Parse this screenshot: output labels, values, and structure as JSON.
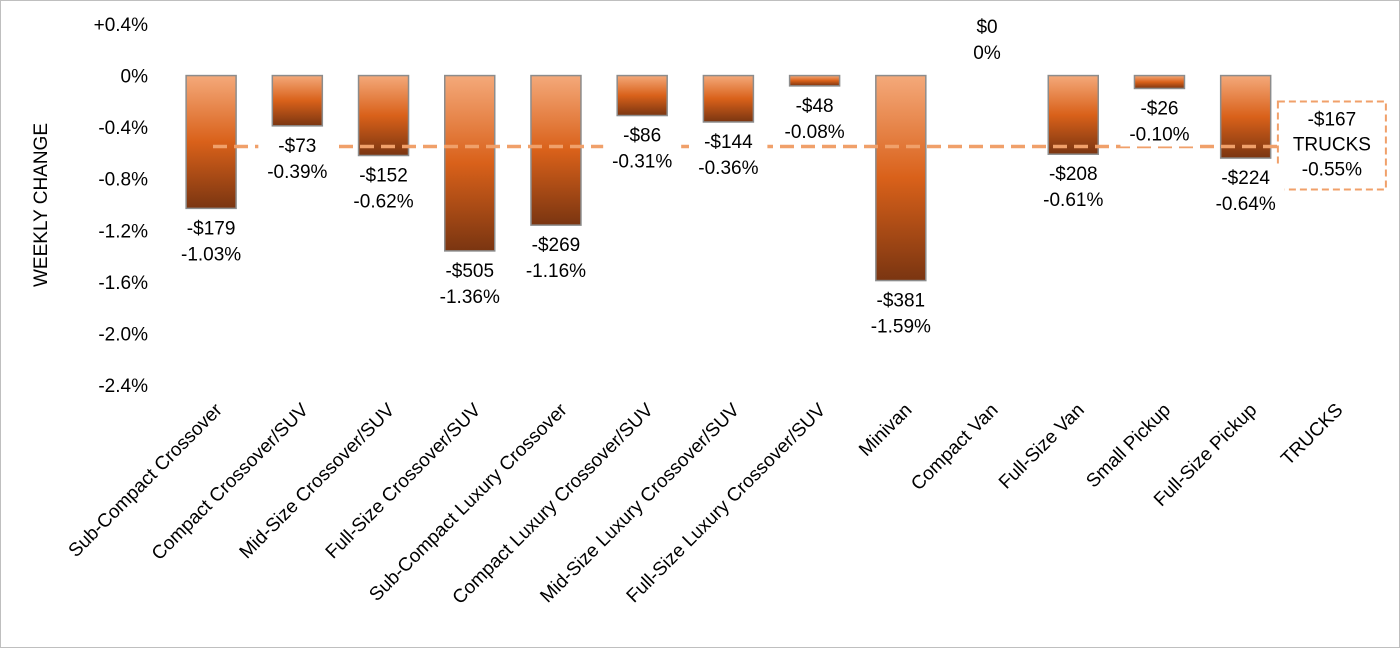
{
  "chart_data": {
    "type": "bar",
    "ylabel": "WEEKLY CHANGE",
    "ylim": [
      -2.4,
      0.4
    ],
    "yticks": [
      0.4,
      0,
      -0.4,
      -0.8,
      -1.2,
      -1.6,
      -2.0,
      -2.4
    ],
    "ytick_labels": [
      "+0.4%",
      "0%",
      "-0.4%",
      "-0.8%",
      "-1.2%",
      "-1.6%",
      "-2.0%",
      "-2.4%"
    ],
    "categories": [
      "Sub-Compact Crossover",
      "Compact Crossover/SUV",
      "Mid-Size Crossover/SUV",
      "Full-Size Crossover/SUV",
      "Sub-Compact Luxury Crossover",
      "Compact Luxury Crossover/SUV",
      "Mid-Size Luxury Crossover/SUV",
      "Full-Size Luxury Crossover/SUV",
      "Minivan",
      "Compact Van",
      "Full-Size Van",
      "Small Pickup",
      "Full-Size Pickup",
      "TRUCKS"
    ],
    "values": [
      -1.03,
      -0.39,
      -0.62,
      -1.36,
      -1.16,
      -0.31,
      -0.36,
      -0.08,
      -1.59,
      0,
      -0.61,
      -0.1,
      -0.64,
      null
    ],
    "dollar_labels": [
      "-$179",
      "-$73",
      "-$152",
      "-$505",
      "-$269",
      "-$86",
      "-$144",
      "-$48",
      "-$381",
      "$0",
      "-$208",
      "-$26",
      "-$224"
    ],
    "pct_labels": [
      "-1.03%",
      "-0.39%",
      "-0.62%",
      "-1.36%",
      "-1.16%",
      "-0.31%",
      "-0.36%",
      "-0.08%",
      "-1.59%",
      "0%",
      "-0.61%",
      "-0.10%",
      "-0.64%"
    ],
    "reference_line": {
      "value": -0.55,
      "dollar_label": "-$167",
      "name_label": "TRUCKS",
      "pct_label": "-0.55%"
    },
    "grid": false,
    "colors": {
      "bar_top": "#f4a97a",
      "bar_mid": "#d9611a",
      "bar_bottom": "#7a3511",
      "bar_stroke": "#8c8c8c",
      "reference": "#f0a06a"
    }
  }
}
